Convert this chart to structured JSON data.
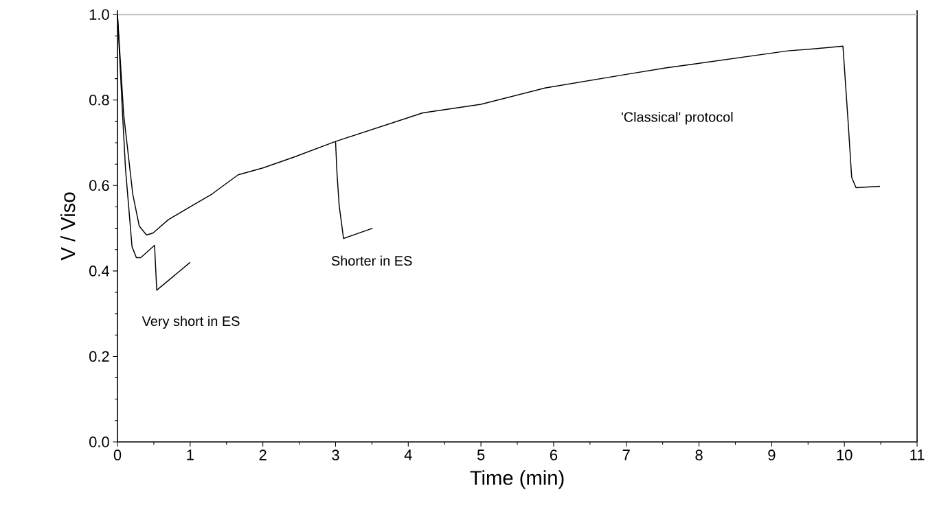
{
  "chart_data": {
    "type": "line",
    "xlabel": "Time (min)",
    "ylabel": "V / Viso",
    "xlim": [
      0,
      11
    ],
    "ylim": [
      0,
      1.01
    ],
    "xticks": [
      0,
      1,
      2,
      3,
      4,
      5,
      6,
      7,
      8,
      9,
      10,
      11
    ],
    "yticks": [
      {
        "value": 0,
        "label": "0.0"
      },
      {
        "value": 0.2,
        "label": "0.2"
      },
      {
        "value": 0.4,
        "label": "0.4"
      },
      {
        "value": 0.6,
        "label": "0.6"
      },
      {
        "value": 0.8,
        "label": "0.8"
      },
      {
        "value": 1.0,
        "label": "1.0"
      }
    ],
    "grid": false,
    "marker": "none",
    "line_style": "solid",
    "series": [
      {
        "color": "#000000",
        "x": [
          0,
          0.085,
          0.21,
          0.3,
          0.4,
          0.49,
          0.7,
          1.0,
          1.3,
          1.66,
          2.0,
          2.42,
          3.0,
          4.2,
          5.0,
          5.88,
          7.0,
          7.54,
          9.22,
          9.6,
          9.98,
          10.05,
          10.1,
          10.16,
          10.49
        ],
        "values": [
          1.0,
          0.767,
          0.58,
          0.505,
          0.484,
          0.489,
          0.52,
          0.55,
          0.58,
          0.625,
          0.641,
          0.666,
          0.703,
          0.77,
          0.79,
          0.828,
          0.86,
          0.875,
          0.915,
          0.92,
          0.926,
          0.752,
          0.619,
          0.595,
          0.598
        ]
      },
      {
        "color": "#000000",
        "x": [
          3.0,
          3.02,
          3.05,
          3.11,
          3.51
        ],
        "values": [
          0.703,
          0.628,
          0.553,
          0.476,
          0.5
        ]
      },
      {
        "color": "#000000",
        "x": [
          0,
          0.07,
          0.11,
          0.2,
          0.26,
          0.32,
          0.51,
          0.54,
          1.0
        ],
        "values": [
          1.0,
          0.767,
          0.64,
          0.457,
          0.431,
          0.431,
          0.46,
          0.355,
          0.42
        ]
      }
    ],
    "ref_lines": [
      {
        "axis": "y",
        "value": 1.0,
        "color": "#c0c0c0",
        "line_style": "solid"
      }
    ],
    "annotations": [
      "Very short in ES",
      "Shorter in ES",
      "'Classical' protocol"
    ]
  }
}
